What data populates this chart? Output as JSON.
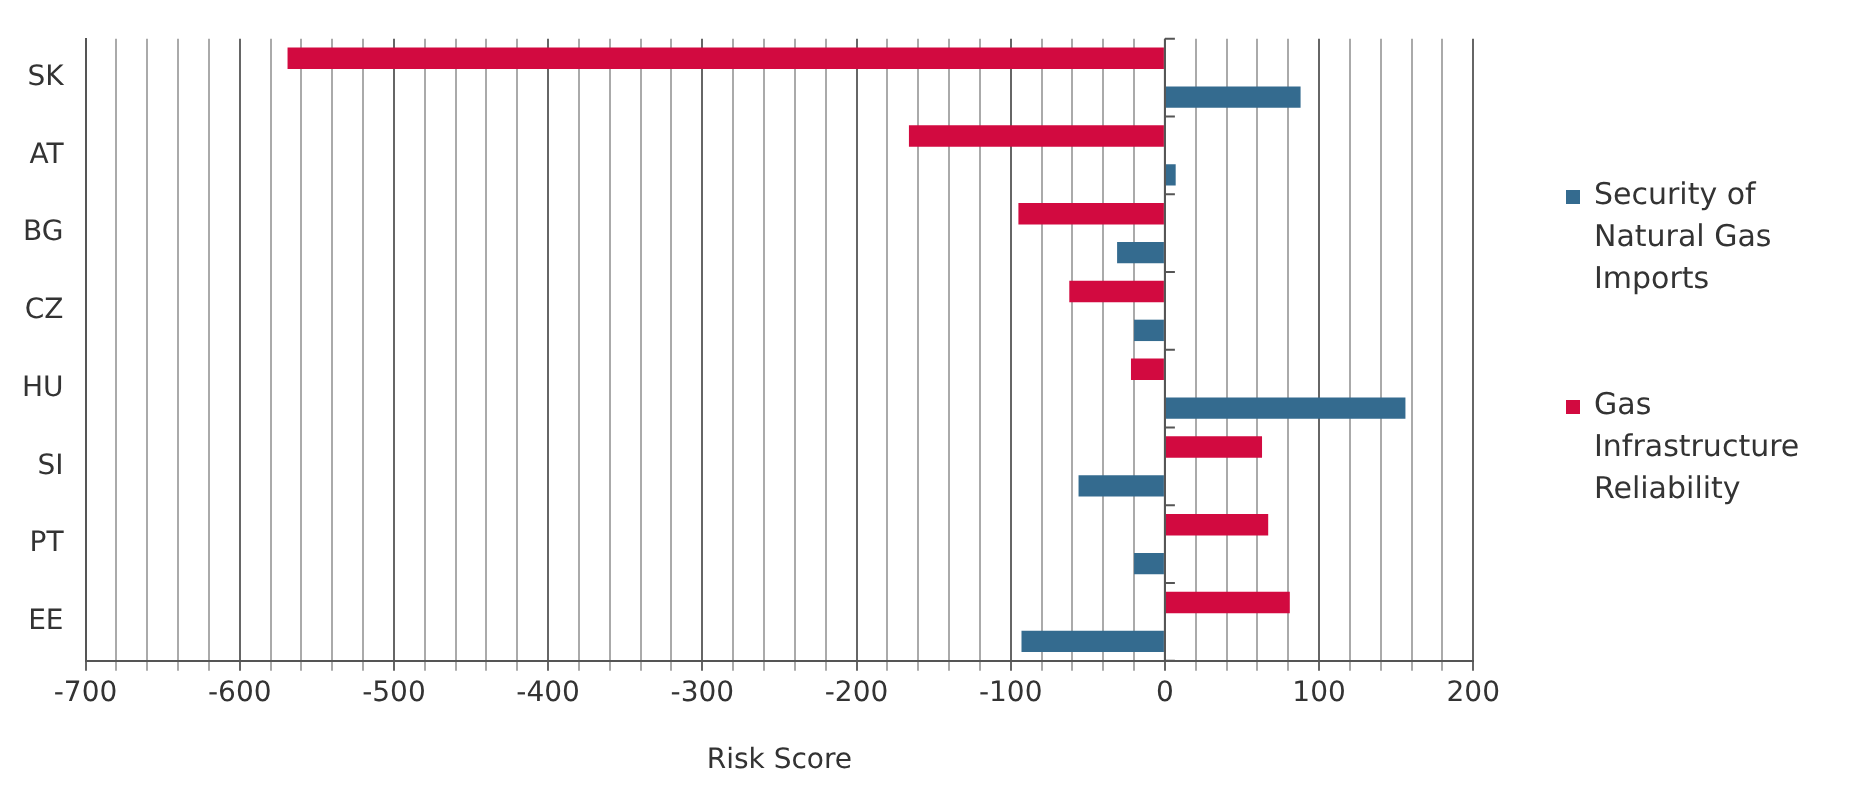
{
  "chart_data": {
    "type": "bar",
    "orientation": "horizontal",
    "xlabel": "Risk Score",
    "categories": [
      "SK",
      "AT",
      "BG",
      "CZ",
      "HU",
      "SI",
      "PT",
      "EE"
    ],
    "series": [
      {
        "name": "Gas Infrastructure Reliability",
        "color": "#d20a40",
        "values": [
          -569,
          -166,
          -95,
          -62,
          -22,
          63,
          67,
          81
        ]
      },
      {
        "name": "Security of Natural Gas Imports",
        "color": "#346b8f",
        "values": [
          88,
          7,
          -31,
          -20,
          156,
          -56,
          -20,
          -93
        ]
      }
    ],
    "xlim": [
      -700,
      200
    ],
    "xticks": [
      -700,
      {
        "value": -680,
        "label": null
      },
      {
        "value": -660,
        "label": null
      },
      {
        "value": -640,
        "label": null
      },
      {
        "value": -620,
        "label": null
      },
      -600,
      {
        "value": -580,
        "label": null
      },
      {
        "value": -560,
        "label": null
      },
      {
        "value": -540,
        "label": null
      },
      {
        "value": -520,
        "label": null
      },
      -500,
      {
        "value": -480,
        "label": null
      },
      {
        "value": -460,
        "label": null
      },
      {
        "value": -440,
        "label": null
      },
      {
        "value": -420,
        "label": null
      },
      -400,
      {
        "value": -380,
        "label": null
      },
      {
        "value": -360,
        "label": null
      },
      {
        "value": -340,
        "label": null
      },
      {
        "value": -320,
        "label": null
      },
      -300,
      {
        "value": -280,
        "label": null
      },
      {
        "value": -260,
        "label": null
      },
      {
        "value": -240,
        "label": null
      },
      {
        "value": -220,
        "label": null
      },
      -200,
      {
        "value": -180,
        "label": null
      },
      {
        "value": -160,
        "label": null
      },
      {
        "value": -140,
        "label": null
      },
      {
        "value": -120,
        "label": null
      },
      -100,
      {
        "value": -80,
        "label": null
      },
      {
        "value": -60,
        "label": null
      },
      {
        "value": -40,
        "label": null
      },
      {
        "value": -20,
        "label": null
      },
      0,
      {
        "value": 20,
        "label": null
      },
      {
        "value": 40,
        "label": null
      },
      {
        "value": 60,
        "label": null
      },
      {
        "value": 80,
        "label": null
      },
      100,
      {
        "value": 120,
        "label": null
      },
      {
        "value": 140,
        "label": null
      },
      {
        "value": 160,
        "label": null
      },
      {
        "value": 180,
        "label": null
      },
      200
    ],
    "grid": "x",
    "legend": "right"
  }
}
